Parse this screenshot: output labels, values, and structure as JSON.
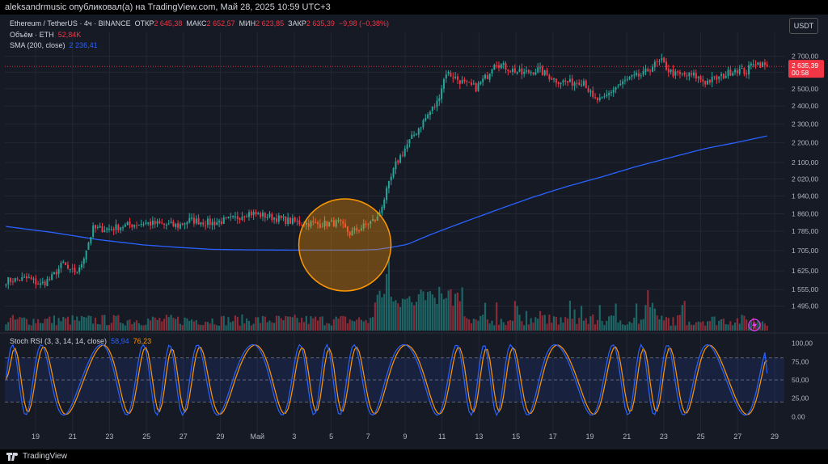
{
  "header": {
    "publisher_line": "aleksandrmusic опубликовал(а) на TradingView.com, Май 28, 2025 10:59 UTC+3"
  },
  "legend": {
    "symbol": "Ethereum / TetherUS · 4ч · BINANCE",
    "open_label": "ОТКР",
    "open_value": "2 645,38",
    "high_label": "МАКС",
    "high_value": "2 652,57",
    "low_label": "МИН",
    "low_value": "2 623,85",
    "close_label": "ЗАКР",
    "close_value": "2 635,39",
    "change": "−9,98 (−0,38%)",
    "volume_label": "Объём · ETH",
    "volume_value": "52,84K",
    "sma_label": "SMA (200, close)",
    "sma_value": "2 236,41",
    "stoch_label": "Stoch RSI (3, 3, 14, 14, close)",
    "stoch_k": "58,94",
    "stoch_d": "76,23"
  },
  "currency_button": "USDT",
  "price_tag": {
    "price": "2 635,39",
    "countdown": "00:58"
  },
  "footer": {
    "brand": "TradingView"
  },
  "colors": {
    "up": "#26a69a",
    "down": "#f23645",
    "sma": "#2962ff",
    "k_line": "#2962ff",
    "d_line": "#ff9800",
    "highlight": "#ff9800"
  },
  "chart_data": [
    {
      "type": "candlestick",
      "title": "Ethereum / TetherUS · 4ч · BINANCE",
      "ylim": [
        1430,
        2760
      ],
      "y_scale": "log",
      "y_ticks": [
        "2 700,00",
        "2 600,00",
        "2 500,00",
        "2 400,00",
        "2 300,00",
        "2 200,00",
        "2 100,00",
        "2 020,00",
        "1 940,00",
        "1 860,00",
        "1 785,00",
        "1 705,00",
        "1 625,00",
        "1 555,00",
        "1 495,00"
      ],
      "y_tick_values": [
        2700,
        2600,
        2500,
        2400,
        2300,
        2200,
        2100,
        2020,
        1940,
        1860,
        1785,
        1705,
        1625,
        1555,
        1495
      ],
      "x_ticks": [
        "19",
        "21",
        "23",
        "25",
        "27",
        "29",
        "Май",
        "3",
        "5",
        "7",
        "9",
        "11",
        "13",
        "15",
        "17",
        "19",
        "21",
        "23",
        "25",
        "27",
        "29"
      ],
      "anchors": [
        [
          0,
          1588
        ],
        [
          10,
          1596
        ],
        [
          15,
          1572
        ],
        [
          20,
          1600
        ],
        [
          25,
          1655
        ],
        [
          28,
          1620
        ],
        [
          32,
          1628
        ],
        [
          38,
          1795
        ],
        [
          45,
          1795
        ],
        [
          50,
          1805
        ],
        [
          60,
          1820
        ],
        [
          75,
          1808
        ],
        [
          80,
          1832
        ],
        [
          90,
          1820
        ],
        [
          100,
          1840
        ],
        [
          105,
          1865
        ],
        [
          115,
          1848
        ],
        [
          125,
          1825
        ],
        [
          135,
          1815
        ],
        [
          145,
          1820
        ],
        [
          150,
          1775
        ],
        [
          155,
          1800
        ],
        [
          162,
          1840
        ],
        [
          166,
          1960
        ],
        [
          170,
          2090
        ],
        [
          175,
          2190
        ],
        [
          179,
          2260
        ],
        [
          184,
          2350
        ],
        [
          188,
          2420
        ],
        [
          192,
          2600
        ],
        [
          200,
          2530
        ],
        [
          205,
          2505
        ],
        [
          210,
          2580
        ],
        [
          213,
          2665
        ],
        [
          218,
          2630
        ],
        [
          225,
          2590
        ],
        [
          232,
          2615
        ],
        [
          240,
          2550
        ],
        [
          246,
          2535
        ],
        [
          252,
          2550
        ],
        [
          256,
          2440
        ],
        [
          260,
          2430
        ],
        [
          265,
          2500
        ],
        [
          272,
          2560
        ],
        [
          278,
          2585
        ],
        [
          282,
          2640
        ],
        [
          286,
          2665
        ],
        [
          289,
          2610
        ],
        [
          292,
          2585
        ],
        [
          300,
          2580
        ],
        [
          305,
          2540
        ],
        [
          312,
          2570
        ],
        [
          318,
          2620
        ],
        [
          323,
          2600
        ],
        [
          326,
          2665
        ],
        [
          329,
          2650
        ],
        [
          332,
          2635
        ]
      ],
      "sma": [
        [
          0,
          1805
        ],
        [
          20,
          1780
        ],
        [
          40,
          1750
        ],
        [
          60,
          1728
        ],
        [
          75,
          1718
        ],
        [
          90,
          1710
        ],
        [
          105,
          1708
        ],
        [
          125,
          1707
        ],
        [
          140,
          1707
        ],
        [
          155,
          1707
        ],
        [
          162,
          1710
        ],
        [
          168,
          1718
        ],
        [
          175,
          1730
        ],
        [
          185,
          1770
        ],
        [
          200,
          1825
        ],
        [
          215,
          1880
        ],
        [
          230,
          1935
        ],
        [
          245,
          1985
        ],
        [
          260,
          2030
        ],
        [
          275,
          2080
        ],
        [
          290,
          2125
        ],
        [
          305,
          2170
        ],
        [
          320,
          2205
        ],
        [
          332,
          2236
        ]
      ],
      "last_price": 2635.39,
      "highlight": "orange circle around the 5–8 May breakout zone"
    },
    {
      "type": "bar",
      "title": "Объём · ETH",
      "last_value": "52,84K",
      "bull_color": "#26a69a",
      "bear_color": "#f23645"
    },
    {
      "type": "line",
      "title": "Stoch RSI (3, 3, 14, 14, close)",
      "ylim": [
        -5,
        105
      ],
      "y_ticks": [
        "100,00",
        "75,00",
        "50,00",
        "25,00",
        "0,00"
      ],
      "y_tick_values": [
        100,
        75,
        50,
        25,
        0
      ],
      "band": [
        20,
        80
      ],
      "series": [
        {
          "name": "K",
          "last": 58.94,
          "color": "#2962ff"
        },
        {
          "name": "D",
          "last": 76.23,
          "color": "#ff9800"
        }
      ]
    }
  ]
}
